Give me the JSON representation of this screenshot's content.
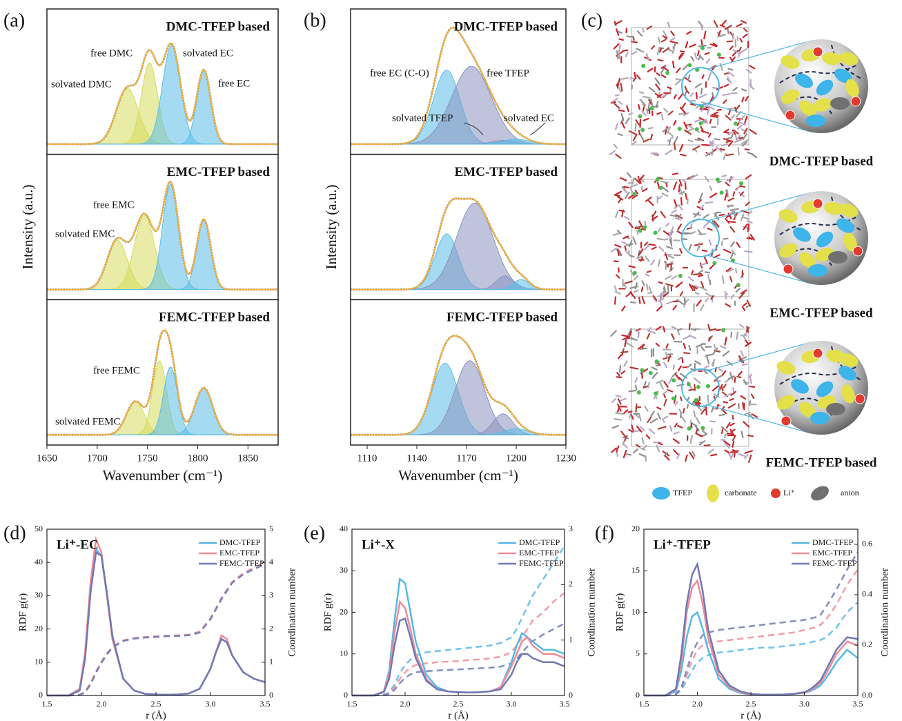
{
  "chart_data": [
    {
      "type": "spectra",
      "panel_label": "(a)",
      "xlabel": "Wavenumber (cm⁻¹)",
      "ylabel": "Intensity (a.u.)",
      "xlim": [
        1650,
        1880
      ],
      "xticks": [
        1650,
        1700,
        1750,
        1800,
        1850
      ],
      "subplots": [
        {
          "title": "DMC-TFEP based",
          "peaks": [
            {
              "label": "solvated DMC",
              "center": 1730,
              "height": 0.45,
              "width": 11,
              "color": "#d6dc5c"
            },
            {
              "label": "free DMC",
              "center": 1752,
              "height": 0.66,
              "width": 8,
              "color": "#d6dc5c"
            },
            {
              "label": "solvated EC",
              "center": 1774,
              "height": 0.8,
              "width": 9,
              "color": "#5bbde8"
            },
            {
              "label": "free EC",
              "center": 1806,
              "height": 0.6,
              "width": 7,
              "color": "#5bbde8"
            }
          ]
        },
        {
          "title": "EMC-TFEP based",
          "peaks": [
            {
              "label": "solvated EMC",
              "center": 1720,
              "height": 0.4,
              "width": 10,
              "color": "#d6dc5c"
            },
            {
              "label": "free EMC",
              "center": 1747,
              "height": 0.6,
              "width": 10,
              "color": "#d6dc5c"
            },
            {
              "center": 1773,
              "height": 0.85,
              "width": 8,
              "color": "#5bbde8"
            },
            {
              "center": 1806,
              "height": 0.57,
              "width": 7,
              "color": "#5bbde8"
            }
          ]
        },
        {
          "title": "FEMC-TFEP based",
          "peaks": [
            {
              "label": "solvated FEMC",
              "center": 1738,
              "height": 0.27,
              "width": 9,
              "color": "#d6dc5c"
            },
            {
              "label": "free FEMC",
              "center": 1762,
              "height": 0.6,
              "width": 7,
              "color": "#d6dc5c"
            },
            {
              "center": 1773,
              "height": 0.55,
              "width": 7,
              "color": "#5bbde8"
            },
            {
              "center": 1806,
              "height": 0.38,
              "width": 9,
              "color": "#5bbde8"
            }
          ]
        }
      ]
    },
    {
      "type": "spectra",
      "panel_label": "(b)",
      "xlabel": "Wavenumber (cm⁻¹)",
      "ylabel": "Intensity (a.u.)",
      "xlim": [
        1100,
        1230
      ],
      "xticks": [
        1110,
        1140,
        1170,
        1200,
        1230
      ],
      "subplots": [
        {
          "title": "DMC-TFEP based",
          "peaks": [
            {
              "label": "free EC (C-O)",
              "center": 1158,
              "height": 0.6,
              "width": 8,
              "color": "#5bbde8"
            },
            {
              "label": "free TFEP",
              "center": 1173,
              "height": 0.63,
              "width": 12,
              "color": "#8a93c0"
            },
            {
              "label": "solvated TFEP",
              "center": 1192,
              "height": 0.03,
              "width": 7,
              "color": "#8a93c0"
            },
            {
              "label": "solvated EC",
              "center": 1200,
              "height": 0.04,
              "width": 8,
              "color": "#5bbde8"
            }
          ]
        },
        {
          "title": "EMC-TFEP based",
          "peaks": [
            {
              "center": 1158,
              "height": 0.45,
              "width": 7,
              "color": "#5bbde8"
            },
            {
              "center": 1175,
              "height": 0.7,
              "width": 11,
              "color": "#8a93c0"
            },
            {
              "center": 1193,
              "height": 0.11,
              "width": 5,
              "color": "#8a93c0"
            },
            {
              "center": 1203,
              "height": 0.08,
              "width": 5,
              "color": "#5bbde8"
            }
          ]
        },
        {
          "title": "FEMC-TFEP based",
          "peaks": [
            {
              "center": 1157,
              "height": 0.58,
              "width": 8,
              "color": "#5bbde8"
            },
            {
              "center": 1172,
              "height": 0.6,
              "width": 9,
              "color": "#8a93c0"
            },
            {
              "center": 1192,
              "height": 0.17,
              "width": 6,
              "color": "#8a93c0"
            },
            {
              "center": 1200,
              "height": 0.05,
              "width": 7,
              "color": "#5bbde8"
            }
          ]
        }
      ]
    },
    {
      "type": "rdf",
      "panel_label": "(d)",
      "title": "Li⁺-EC",
      "xlabel": "r (Å)",
      "ylabel": "RDF g(r)",
      "y2label": "Coordination number",
      "xlim": [
        1.5,
        3.5
      ],
      "xticks": [
        1.5,
        {
          "value": 2,
          "label": "2.0"
        },
        2.5,
        {
          "value": 3,
          "label": "3.0"
        },
        3.5
      ],
      "ylim": [
        0,
        50
      ],
      "yticks": [
        0,
        10,
        20,
        30,
        40,
        50
      ],
      "y2lim": [
        0,
        5
      ],
      "y2ticks": [
        0,
        1,
        2,
        3,
        4,
        5
      ],
      "x": [
        1.5,
        1.7,
        1.8,
        1.85,
        1.9,
        1.95,
        2.0,
        2.05,
        2.1,
        2.2,
        2.3,
        2.4,
        2.5,
        2.6,
        2.7,
        2.8,
        2.9,
        3.0,
        3.05,
        3.1,
        3.15,
        3.2,
        3.3,
        3.4,
        3.5
      ],
      "series": [
        {
          "name": "DMC-TFEP",
          "color": "#55b8e6",
          "values": [
            0,
            0,
            2,
            12,
            32,
            44,
            42,
            30,
            18,
            5,
            1.5,
            0.5,
            0.3,
            0.2,
            0.3,
            0.6,
            2,
            8,
            13,
            17,
            16,
            12,
            7,
            5,
            4
          ]
        },
        {
          "name": "EMC-TFEP",
          "color": "#ef8a97",
          "values": [
            0,
            0,
            2,
            13,
            34,
            47,
            43,
            30,
            17,
            5,
            1.5,
            0.5,
            0.3,
            0.2,
            0.3,
            0.6,
            2,
            8,
            13,
            18,
            17,
            12,
            7,
            5,
            4
          ]
        },
        {
          "name": "FEMC-TFEP",
          "color": "#6f78b4",
          "values": [
            0,
            0,
            1.5,
            11,
            31,
            43,
            42,
            31,
            18,
            5,
            1.5,
            0.5,
            0.3,
            0.2,
            0.3,
            0.6,
            2,
            8,
            13,
            17,
            16,
            12,
            7,
            5,
            4
          ]
        }
      ],
      "cn_series": [
        {
          "axis": "y2",
          "color": "#55b8e6",
          "values": [
            0,
            0,
            0.02,
            0.1,
            0.35,
            0.7,
            1.0,
            1.25,
            1.45,
            1.65,
            1.72,
            1.75,
            1.77,
            1.79,
            1.8,
            1.82,
            1.9,
            2.3,
            2.6,
            2.9,
            3.15,
            3.4,
            3.65,
            3.8,
            3.95
          ]
        },
        {
          "axis": "y2",
          "color": "#ef8a97",
          "values": [
            0,
            0,
            0.02,
            0.11,
            0.37,
            0.72,
            1.02,
            1.27,
            1.46,
            1.66,
            1.73,
            1.76,
            1.78,
            1.8,
            1.81,
            1.83,
            1.92,
            2.32,
            2.62,
            2.93,
            3.18,
            3.42,
            3.68,
            3.85,
            4.0
          ]
        },
        {
          "axis": "y2",
          "color": "#6f78b4",
          "values": [
            0,
            0,
            0.01,
            0.09,
            0.33,
            0.68,
            0.98,
            1.23,
            1.44,
            1.64,
            1.71,
            1.74,
            1.76,
            1.78,
            1.79,
            1.81,
            1.89,
            2.29,
            2.59,
            2.89,
            3.14,
            3.39,
            3.64,
            3.8,
            3.95
          ]
        }
      ]
    },
    {
      "type": "rdf",
      "panel_label": "(e)",
      "title": "Li⁺-X",
      "xlabel": "r (Å)",
      "ylabel": "RDF g(r)",
      "y2label": "Coordination number",
      "xlim": [
        1.5,
        3.5
      ],
      "xticks": [
        1.5,
        {
          "value": 2,
          "label": "2.0"
        },
        2.5,
        {
          "value": 3,
          "label": "3.0"
        },
        3.5
      ],
      "ylim": [
        0,
        40
      ],
      "yticks": [
        0,
        10,
        20,
        30,
        40
      ],
      "y2lim": [
        0,
        3
      ],
      "y2ticks": [
        0,
        1,
        2,
        3
      ],
      "x": [
        1.5,
        1.7,
        1.8,
        1.85,
        1.9,
        1.95,
        2.0,
        2.05,
        2.1,
        2.2,
        2.3,
        2.4,
        2.5,
        2.6,
        2.7,
        2.8,
        2.9,
        3.0,
        3.05,
        3.1,
        3.15,
        3.2,
        3.3,
        3.4,
        3.5
      ],
      "series": [
        {
          "name": "DMC-TFEP",
          "color": "#55b8e6",
          "values": [
            0,
            0,
            1,
            6,
            18,
            28,
            27,
            20,
            13,
            5,
            2,
            1,
            0.8,
            0.7,
            0.8,
            1,
            2,
            8,
            12,
            15,
            14,
            13,
            11,
            11,
            10
          ]
        },
        {
          "name": "EMC-TFEP",
          "color": "#ef8a97",
          "values": [
            0,
            0,
            1,
            5,
            15,
            22.5,
            21,
            16,
            10,
            4,
            1.5,
            1,
            0.8,
            0.7,
            0.8,
            1,
            2,
            7,
            10,
            13,
            14,
            12,
            10,
            10,
            9
          ]
        },
        {
          "name": "FEMC-TFEP",
          "color": "#6f78b4",
          "values": [
            0,
            0,
            0.8,
            4,
            12,
            18,
            18.5,
            14,
            9,
            3.5,
            1.5,
            1,
            0.8,
            0.7,
            0.8,
            1,
            1.5,
            5,
            8,
            10,
            10,
            9,
            8,
            8,
            7
          ]
        }
      ],
      "cn_series": [
        {
          "axis": "y2",
          "color": "#55b8e6",
          "values": [
            0,
            0,
            0.01,
            0.05,
            0.2,
            0.4,
            0.55,
            0.65,
            0.72,
            0.78,
            0.8,
            0.82,
            0.84,
            0.86,
            0.88,
            0.9,
            0.95,
            1.05,
            1.2,
            1.4,
            1.6,
            1.8,
            2.1,
            2.4,
            2.7
          ]
        },
        {
          "axis": "y2",
          "color": "#ef8a97",
          "values": [
            0,
            0,
            0.01,
            0.04,
            0.15,
            0.3,
            0.42,
            0.5,
            0.55,
            0.58,
            0.6,
            0.61,
            0.62,
            0.64,
            0.65,
            0.67,
            0.7,
            0.78,
            0.9,
            1.05,
            1.2,
            1.35,
            1.5,
            1.7,
            1.85
          ]
        },
        {
          "axis": "y2",
          "color": "#6f78b4",
          "values": [
            0,
            0,
            0.01,
            0.03,
            0.1,
            0.22,
            0.32,
            0.38,
            0.42,
            0.44,
            0.45,
            0.46,
            0.47,
            0.48,
            0.49,
            0.5,
            0.52,
            0.58,
            0.66,
            0.78,
            0.88,
            0.98,
            1.1,
            1.2,
            1.3
          ]
        }
      ]
    },
    {
      "type": "rdf",
      "panel_label": "(f)",
      "title": "Li⁺-TFEP",
      "xlabel": "r (Å)",
      "ylabel": "RDF g(r)",
      "y2label": "Coordination number",
      "xlim": [
        1.5,
        3.5
      ],
      "xticks": [
        1.5,
        {
          "value": 2,
          "label": "2.0"
        },
        2.5,
        {
          "value": 3,
          "label": "3.0"
        },
        3.5
      ],
      "ylim": [
        0,
        20
      ],
      "yticks": [
        0,
        5,
        10,
        15,
        20
      ],
      "y2lim": [
        0,
        0.66
      ],
      "y2ticks": [
        {
          "value": 0,
          "label": "0.0"
        },
        0.2,
        0.4,
        0.6
      ],
      "x": [
        1.5,
        1.7,
        1.8,
        1.85,
        1.9,
        1.95,
        2.0,
        2.05,
        2.1,
        2.2,
        2.3,
        2.4,
        2.5,
        2.6,
        2.7,
        2.8,
        2.9,
        3.0,
        3.05,
        3.1,
        3.15,
        3.2,
        3.3,
        3.4,
        3.5
      ],
      "series": [
        {
          "name": "DMC-TFEP",
          "color": "#55b8e6",
          "values": [
            0,
            0,
            0.5,
            3,
            7,
            9.5,
            10,
            8,
            5.5,
            2,
            0.8,
            0.3,
            0.1,
            0.1,
            0.1,
            0.1,
            0.2,
            0.3,
            0.5,
            0.8,
            1.2,
            2,
            4,
            5.5,
            4.5
          ]
        },
        {
          "name": "EMC-TFEP",
          "color": "#ef8a97",
          "values": [
            0,
            0,
            0.7,
            4,
            10,
            13,
            13.8,
            11,
            7,
            2.5,
            1,
            0.4,
            0.1,
            0.1,
            0.1,
            0.1,
            0.2,
            0.3,
            0.6,
            1,
            1.5,
            2.5,
            5,
            6.5,
            6
          ]
        },
        {
          "name": "FEMC-TFEP",
          "color": "#6f78b4",
          "values": [
            0,
            0,
            0.8,
            5,
            11,
            14.5,
            15.8,
            12.5,
            8,
            3,
            1.2,
            0.5,
            0.2,
            0.1,
            0.1,
            0.1,
            0.2,
            0.4,
            0.7,
            1.2,
            1.8,
            3,
            5.5,
            7,
            6.8
          ]
        }
      ],
      "cn_series": [
        {
          "axis": "y2",
          "color": "#55b8e6",
          "values": [
            0,
            0,
            0.005,
            0.02,
            0.06,
            0.1,
            0.13,
            0.15,
            0.16,
            0.17,
            0.175,
            0.18,
            0.185,
            0.19,
            0.19,
            0.195,
            0.2,
            0.205,
            0.21,
            0.215,
            0.22,
            0.23,
            0.27,
            0.33,
            0.37
          ]
        },
        {
          "axis": "y2",
          "color": "#ef8a97",
          "values": [
            0,
            0,
            0.005,
            0.03,
            0.08,
            0.14,
            0.18,
            0.2,
            0.21,
            0.215,
            0.22,
            0.225,
            0.23,
            0.235,
            0.24,
            0.245,
            0.25,
            0.26,
            0.265,
            0.27,
            0.28,
            0.3,
            0.36,
            0.44,
            0.5
          ]
        },
        {
          "axis": "y2",
          "color": "#6f78b4",
          "values": [
            0,
            0,
            0.006,
            0.03,
            0.1,
            0.17,
            0.21,
            0.24,
            0.25,
            0.26,
            0.265,
            0.27,
            0.275,
            0.28,
            0.285,
            0.29,
            0.295,
            0.3,
            0.305,
            0.31,
            0.32,
            0.35,
            0.42,
            0.5,
            0.57
          ]
        }
      ]
    }
  ],
  "diagram": {
    "panel_label": "(c)",
    "titles": [
      "DMC-TFEP based",
      "EMC-TFEP based",
      "FEMC-TFEP based"
    ],
    "legend": [
      "TFEP",
      "carbonate",
      "Li⁺",
      "anion"
    ]
  }
}
